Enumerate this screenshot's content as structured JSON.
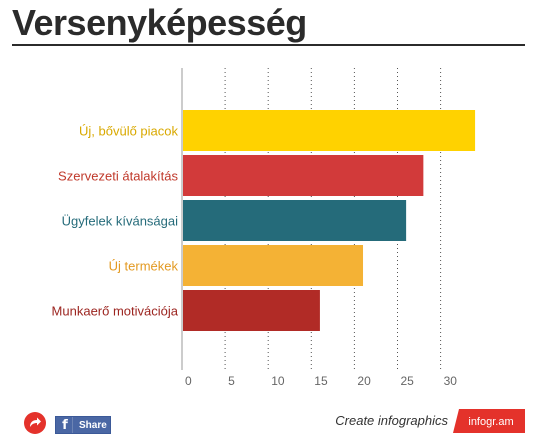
{
  "title": "Versenyképesség",
  "chart_data": {
    "type": "bar",
    "orientation": "horizontal",
    "categories": [
      "Új, bővülő piacok",
      "Szervezeti átalakítás",
      "Ügyfelek kívánságai",
      "Új termékek",
      "Munkaerő motivációja"
    ],
    "values": [
      34,
      28,
      26,
      21,
      16
    ],
    "colors": [
      "#ffd200",
      "#d23a3a",
      "#256b7a",
      "#f4b235",
      "#b12b26"
    ],
    "label_colors": [
      "#d9a900",
      "#c0392b",
      "#256b7a",
      "#e39a22",
      "#9c2520"
    ],
    "xlim": [
      0,
      34
    ],
    "xticks": [
      0,
      5,
      10,
      15,
      20,
      25,
      30
    ],
    "grid": true
  },
  "footer": {
    "share_label": "Share",
    "create_label": "Create infographics",
    "brand_label": "infogr.am"
  },
  "icons": {
    "share_arrow": "redo-arrow-icon",
    "facebook": "facebook-icon"
  }
}
